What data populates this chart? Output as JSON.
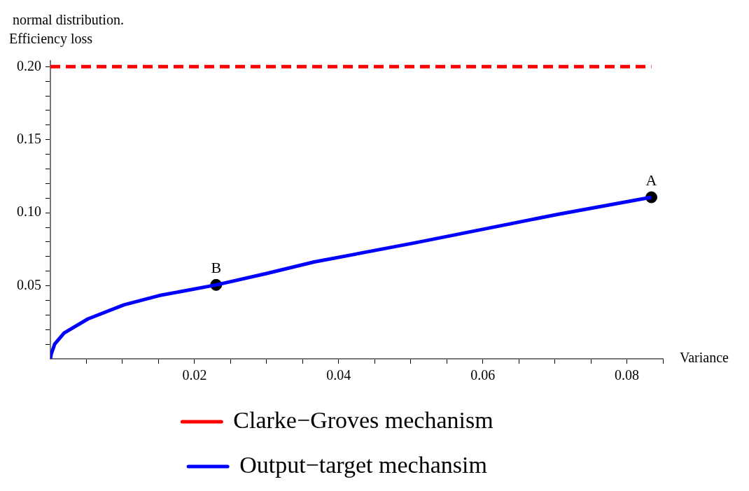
{
  "chart_data": {
    "type": "line",
    "title": "normal distribution.",
    "xlabel": "Variance",
    "ylabel": "Efficiency loss",
    "xlim": [
      0,
      0.085
    ],
    "ylim": [
      0,
      0.204
    ],
    "xticks": [
      {
        "value": 0.005,
        "label": null
      },
      {
        "value": 0.01,
        "label": null
      },
      {
        "value": 0.015,
        "label": null
      },
      0.02,
      {
        "value": 0.025,
        "label": null
      },
      {
        "value": 0.03,
        "label": null
      },
      {
        "value": 0.035,
        "label": null
      },
      0.04,
      {
        "value": 0.045,
        "label": null
      },
      {
        "value": 0.05,
        "label": null
      },
      {
        "value": 0.055,
        "label": null
      },
      0.06,
      {
        "value": 0.065,
        "label": null
      },
      {
        "value": 0.07,
        "label": null
      },
      {
        "value": 0.075,
        "label": null
      },
      0.08,
      {
        "value": 0.085,
        "label": null
      }
    ],
    "yticks": [
      {
        "value": 0.01,
        "label": null
      },
      {
        "value": 0.02,
        "label": null
      },
      {
        "value": 0.03,
        "label": null
      },
      {
        "value": 0.04,
        "label": null
      },
      0.05,
      {
        "value": 0.06,
        "label": null
      },
      {
        "value": 0.07,
        "label": null
      },
      {
        "value": 0.08,
        "label": null
      },
      {
        "value": 0.09,
        "label": null
      },
      {
        "value": 0.1,
        "label": "0.10"
      },
      {
        "value": 0.11,
        "label": null
      },
      {
        "value": 0.12,
        "label": null
      },
      {
        "value": 0.13,
        "label": null
      },
      {
        "value": 0.14,
        "label": null
      },
      0.15,
      {
        "value": 0.16,
        "label": null
      },
      {
        "value": 0.17,
        "label": null
      },
      {
        "value": 0.18,
        "label": null
      },
      {
        "value": 0.19,
        "label": null
      },
      {
        "value": 0.2,
        "label": "0.20"
      }
    ],
    "legend": "bottom",
    "series": [
      {
        "name": "Clarke−Groves mechanism",
        "color": "#ff0000",
        "line_style": "dashed",
        "x": [
          0,
          0.0834
        ],
        "values": [
          0.2,
          0.2
        ]
      },
      {
        "name": "Output−target mechansim",
        "color": "#0000ff",
        "line_style": "solid",
        "x": [
          0,
          0.0001,
          0.0006,
          0.0019,
          0.0052,
          0.0102,
          0.0151,
          0.023,
          0.03,
          0.0366,
          0.0505,
          0.0704,
          0.0834
        ],
        "values": [
          0,
          0.003,
          0.0101,
          0.0177,
          0.0273,
          0.0369,
          0.0433,
          0.0506,
          0.0584,
          0.0663,
          0.0793,
          0.0989,
          0.1106
        ]
      },
      {
        "type": "scatter",
        "color": "#000000",
        "marker": "circle",
        "x": [
          0.0834,
          0.023
        ],
        "values": [
          0.1106,
          0.0506
        ]
      }
    ],
    "annotations": [
      {
        "text": "A",
        "x": 0.0834,
        "y": 0.1106
      },
      {
        "text": "B",
        "x": 0.023,
        "y": 0.0506
      }
    ]
  }
}
